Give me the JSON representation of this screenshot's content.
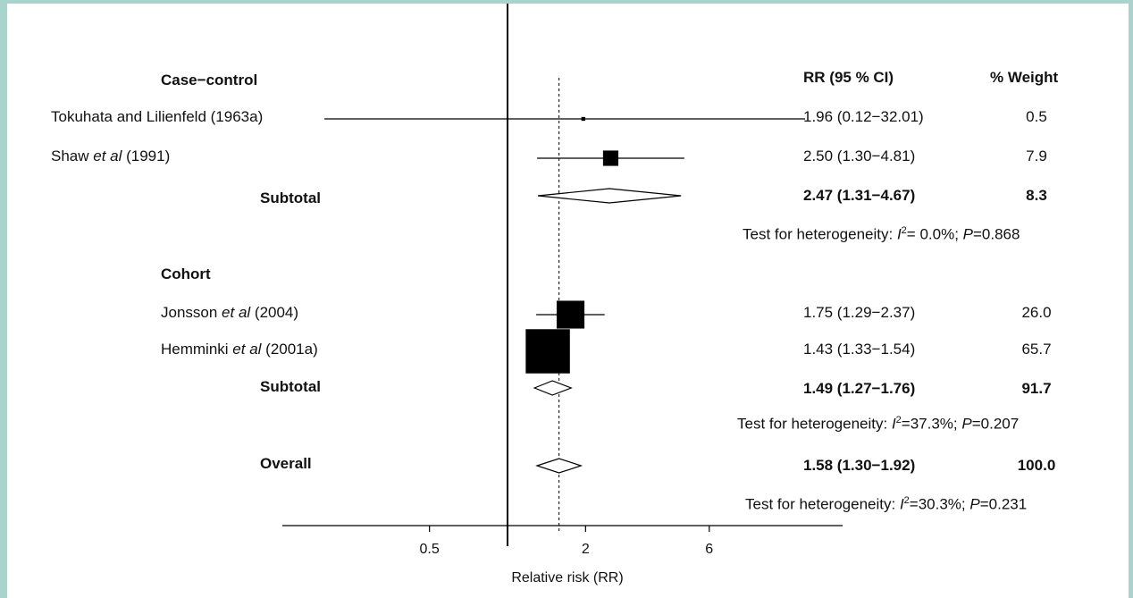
{
  "chart_data": {
    "type": "forest",
    "xlabel": "Relative risk (RR)",
    "x_scale": "log",
    "reference_line": 1,
    "pooled_line": 1.58,
    "ticks": [
      "0.5",
      "2",
      "6"
    ],
    "columns": {
      "ci": "RR (95 % CI)",
      "weight": "% Weight"
    },
    "groups": [
      {
        "name": "Case−control",
        "studies": [
          {
            "label_pre": "Tokuhata and Lilienfeld (1963a)",
            "label_etal": "",
            "label_post": "",
            "rr": 1.96,
            "lo": 0.12,
            "hi": 32.01,
            "ci_text": "1.96 (0.12−32.01)",
            "weight": 0.5,
            "weight_text": "0.5"
          },
          {
            "label_pre": "Shaw ",
            "label_etal": "et al",
            "label_post": " (1991)",
            "rr": 2.5,
            "lo": 1.3,
            "hi": 4.81,
            "ci_text": "2.50 (1.30−4.81)",
            "weight": 7.9,
            "weight_text": "7.9"
          }
        ],
        "subtotal": {
          "label": "Subtotal",
          "rr": 2.47,
          "lo": 1.31,
          "hi": 4.67,
          "ci_text": "2.47 (1.31−4.67)",
          "weight_text": "8.3"
        },
        "heterogeneity": {
          "prefix": "Test for heterogeneity: ",
          "i2_sym": "I",
          "i2_sup": "2",
          "i2_val": "= 0.0%; ",
          "p_sym": "P",
          "p_val": "=0.868"
        }
      },
      {
        "name": "Cohort",
        "studies": [
          {
            "label_pre": "Jonsson ",
            "label_etal": "et al",
            "label_post": " (2004)",
            "rr": 1.75,
            "lo": 1.29,
            "hi": 2.37,
            "ci_text": "1.75 (1.29−2.37)",
            "weight": 26.0,
            "weight_text": "26.0"
          },
          {
            "label_pre": "Hemminki ",
            "label_etal": "et al",
            "label_post": " (2001a)",
            "rr": 1.43,
            "lo": 1.33,
            "hi": 1.54,
            "ci_text": "1.43 (1.33−1.54)",
            "weight": 65.7,
            "weight_text": "65.7"
          }
        ],
        "subtotal": {
          "label": "Subtotal",
          "rr": 1.49,
          "lo": 1.27,
          "hi": 1.76,
          "ci_text": "1.49 (1.27−1.76)",
          "weight_text": "91.7"
        },
        "heterogeneity": {
          "prefix": "Test for heterogeneity: ",
          "i2_sym": "I",
          "i2_sup": "2",
          "i2_val": "=37.3%; ",
          "p_sym": "P",
          "p_val": "=0.207"
        }
      }
    ],
    "overall": {
      "label": "Overall",
      "rr": 1.58,
      "lo": 1.3,
      "hi": 1.92,
      "ci_text": "1.58 (1.30−1.92)",
      "weight_text": "100.0",
      "heterogeneity": {
        "prefix": "Test for heterogeneity: ",
        "i2_sym": "I",
        "i2_sup": "2",
        "i2_val": "=30.3%; ",
        "p_sym": "P",
        "p_val": "=0.231"
      }
    }
  }
}
